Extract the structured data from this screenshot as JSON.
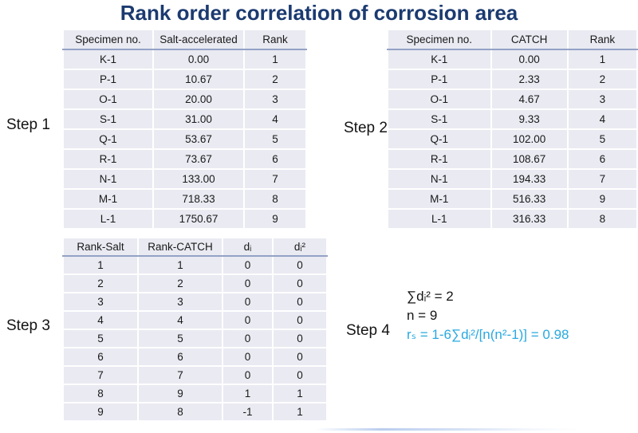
{
  "title": "Rank order correlation of corrosion area",
  "steps": {
    "s1": "Step 1",
    "s2": "Step 2",
    "s3": "Step 3",
    "s4": "Step 4"
  },
  "table1": {
    "headers": [
      "Specimen no.",
      "Salt-accelerated",
      "Rank"
    ],
    "rows": [
      [
        "K-1",
        "0.00",
        "1"
      ],
      [
        "P-1",
        "10.67",
        "2"
      ],
      [
        "O-1",
        "20.00",
        "3"
      ],
      [
        "S-1",
        "31.00",
        "4"
      ],
      [
        "Q-1",
        "53.67",
        "5"
      ],
      [
        "R-1",
        "73.67",
        "6"
      ],
      [
        "N-1",
        "133.00",
        "7"
      ],
      [
        "M-1",
        "718.33",
        "8"
      ],
      [
        "L-1",
        "1750.67",
        "9"
      ]
    ]
  },
  "table2": {
    "headers": [
      "Specimen no.",
      "CATCH",
      "Rank"
    ],
    "rows": [
      [
        "K-1",
        "0.00",
        "1"
      ],
      [
        "P-1",
        "2.33",
        "2"
      ],
      [
        "O-1",
        "4.67",
        "3"
      ],
      [
        "S-1",
        "9.33",
        "4"
      ],
      [
        "Q-1",
        "102.00",
        "5"
      ],
      [
        "R-1",
        "108.67",
        "6"
      ],
      [
        "N-1",
        "194.33",
        "7"
      ],
      [
        "M-1",
        "516.33",
        "9"
      ],
      [
        "L-1",
        "316.33",
        "8"
      ]
    ]
  },
  "table3": {
    "headers": [
      "Rank-Salt",
      "Rank-CATCH",
      "dᵢ",
      "dᵢ²"
    ],
    "rows": [
      [
        "1",
        "1",
        "0",
        "0"
      ],
      [
        "2",
        "2",
        "0",
        "0"
      ],
      [
        "3",
        "3",
        "0",
        "0"
      ],
      [
        "4",
        "4",
        "0",
        "0"
      ],
      [
        "5",
        "5",
        "0",
        "0"
      ],
      [
        "6",
        "6",
        "0",
        "0"
      ],
      [
        "7",
        "7",
        "0",
        "0"
      ],
      [
        "8",
        "9",
        "1",
        "1"
      ],
      [
        "9",
        "8",
        "-1",
        "1"
      ]
    ]
  },
  "step4": {
    "line1": "∑dᵢ² = 2",
    "line2": "n = 9",
    "line3": "rₛ = 1-6∑dᵢ²/[n(n²-1)] = 0.98"
  },
  "colors": {
    "title": "#1b3a70",
    "formula": "#29a9e0",
    "cell-bg": "#e9eaf2",
    "header-line": "#94a2c6"
  }
}
